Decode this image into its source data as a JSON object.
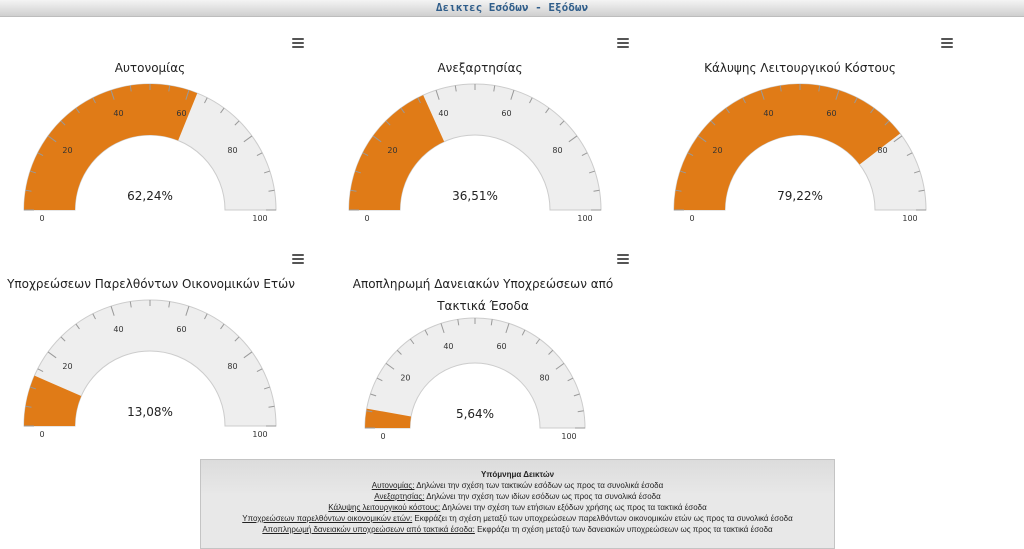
{
  "header": {
    "title": "Δεικτες Εσόδων - Εξόδων"
  },
  "colors": {
    "fill": "#e07b17",
    "track": "#eeeeee",
    "track_border": "#cccccc",
    "tick": "#999999"
  },
  "chart_data": [
    {
      "type": "gauge",
      "title": "Αυτονομίας",
      "value": 62.24,
      "value_label": "62,24%",
      "min": 0,
      "max": 100,
      "tick_labels": [
        "0",
        "20",
        "40",
        "60",
        "80",
        "100"
      ]
    },
    {
      "type": "gauge",
      "title": "Ανεξαρτησίας",
      "value": 36.51,
      "value_label": "36,51%",
      "min": 0,
      "max": 100,
      "tick_labels": [
        "0",
        "20",
        "40",
        "60",
        "80",
        "100"
      ]
    },
    {
      "type": "gauge",
      "title": "Κάλυψης Λειτουργικού Κόστους",
      "value": 79.22,
      "value_label": "79,22%",
      "min": 0,
      "max": 100,
      "tick_labels": [
        "0",
        "20",
        "40",
        "60",
        "80",
        "100"
      ]
    },
    {
      "type": "gauge",
      "title": "Υποχρεώσεων Παρελθόντων Οικονομικών Ετών",
      "value": 13.08,
      "value_label": "13,08%",
      "min": 0,
      "max": 100,
      "tick_labels": [
        "0",
        "20",
        "40",
        "60",
        "80",
        "100"
      ]
    },
    {
      "type": "gauge",
      "title": "Αποπληρωμή Δανειακών Υποχρεώσεων από Τακτικά Έσοδα",
      "title_line1": "Αποπληρωμή Δανειακών Υποχρεώσεων από",
      "title_line2": "Τακτικά Έσοδα",
      "value": 5.64,
      "value_label": "5,64%",
      "min": 0,
      "max": 100,
      "tick_labels": [
        "0",
        "20",
        "40",
        "60",
        "80",
        "100"
      ]
    }
  ],
  "legend": {
    "title": "Υπόμνημα Δεικτών",
    "items": [
      {
        "term": "Αυτονομίας:",
        "desc": " Δηλώνει την σχέση των τακτικών εσόδων ως προς τα συνολικά έσοδα"
      },
      {
        "term": "Ανεξαρτησίας:",
        "desc": " Δηλώνει την σχέση των ιδίων εσόδων ως προς τα συνολικά έσοδα"
      },
      {
        "term": "Κάλυψης λειτουργικού κόστους:",
        "desc": " Δηλώνει την σχέση των ετήσιων εξόδων χρήσης ως προς τα τακτικά έσοδα"
      },
      {
        "term": "Υποχρεώσεων παρελθόντων οικονομικών ετών:",
        "desc": " Εκφράζει τη σχέση μεταξύ των υποχρεώσεων παρελθόντων οικονομικών ετών ως προς τα συνολικά έσοδα"
      },
      {
        "term": "Αποπληρωμή δανειακών υποχρεώσεων από τακτικά έσοδα:",
        "desc": " Εκφράζει τη σχέση μεταξύ των δανειακών υποχρεώσεων ως προς τα τακτικά έσοδα"
      }
    ]
  }
}
